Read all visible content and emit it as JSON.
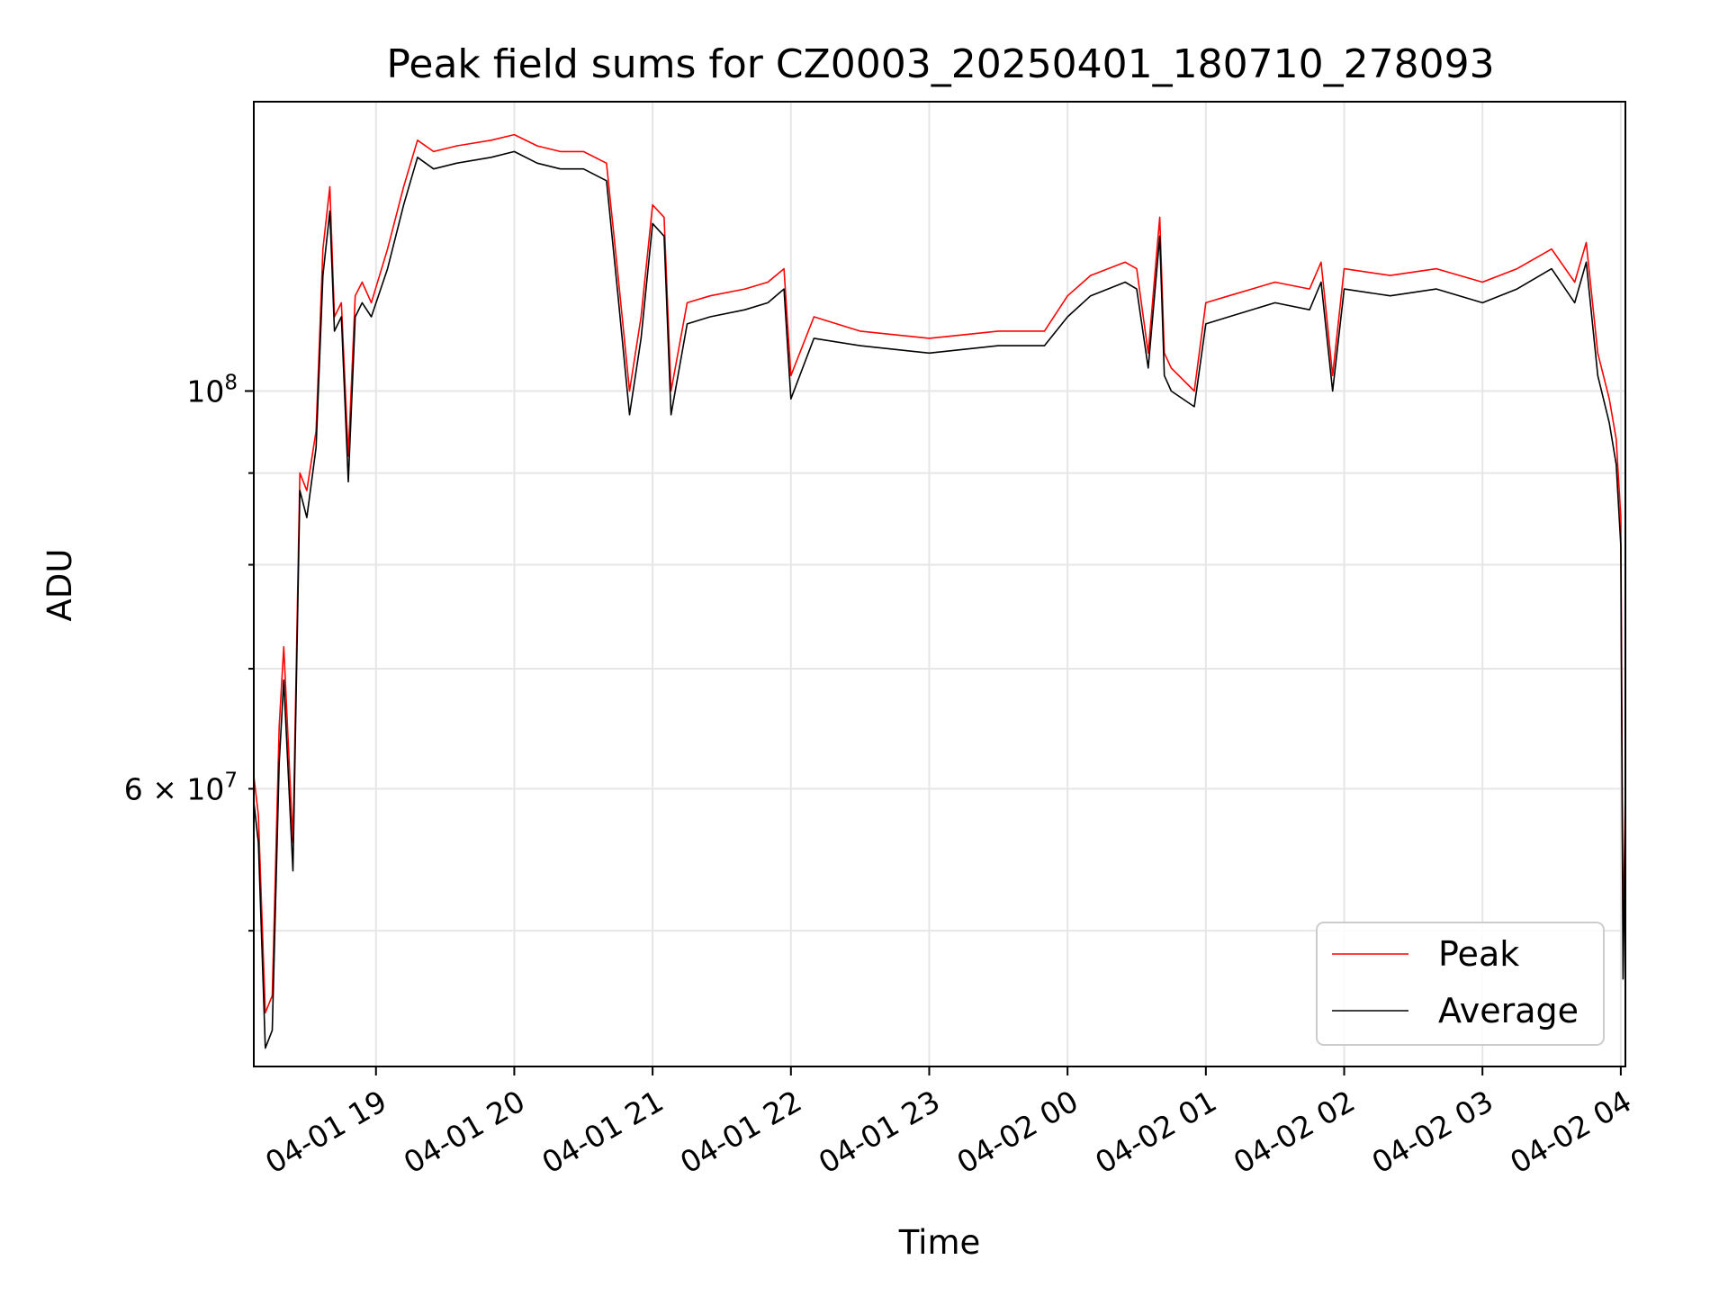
{
  "chart_data": {
    "type": "line",
    "title": "Peak field sums for CZ0003_20250401_180710_278093",
    "xlabel": "Time",
    "ylabel": "ADU",
    "yscale": "log",
    "ylim": [
      42000000,
      145000000
    ],
    "xlim": [
      "2025-04-01 18:07",
      "2025-04-02 04:02"
    ],
    "x_ticks": [
      "04-01 19",
      "04-01 20",
      "04-01 21",
      "04-01 22",
      "04-01 23",
      "04-02 00",
      "04-02 01",
      "04-02 02",
      "04-02 03",
      "04-02 04"
    ],
    "y_tick_labels": [
      {
        "value": 100000000,
        "base": "10",
        "exp": "8"
      },
      {
        "value": 60000000,
        "mant": "6 × 10",
        "exp": "7"
      }
    ],
    "grid": true,
    "legend": {
      "position": "lower-right",
      "entries": [
        "Peak",
        "Average"
      ]
    },
    "colors": {
      "Peak": "#ff0000",
      "Average": "#000000"
    },
    "series": [
      {
        "name": "Peak",
        "color": "#ff0000",
        "x": [
          "2025-04-01 18:07",
          "2025-04-01 18:09",
          "2025-04-01 18:12",
          "2025-04-01 18:15",
          "2025-04-01 18:18",
          "2025-04-01 18:20",
          "2025-04-01 18:24",
          "2025-04-01 18:27",
          "2025-04-01 18:30",
          "2025-04-01 18:34",
          "2025-04-01 18:37",
          "2025-04-01 18:40",
          "2025-04-01 18:42",
          "2025-04-01 18:45",
          "2025-04-01 18:48",
          "2025-04-01 18:51",
          "2025-04-01 18:54",
          "2025-04-01 18:58",
          "2025-04-01 19:05",
          "2025-04-01 19:12",
          "2025-04-01 19:18",
          "2025-04-01 19:25",
          "2025-04-01 19:35",
          "2025-04-01 19:50",
          "2025-04-01 20:00",
          "2025-04-01 20:10",
          "2025-04-01 20:20",
          "2025-04-01 20:30",
          "2025-04-01 20:40",
          "2025-04-01 20:45",
          "2025-04-01 20:50",
          "2025-04-01 20:55",
          "2025-04-01 21:00",
          "2025-04-01 21:05",
          "2025-04-01 21:08",
          "2025-04-01 21:15",
          "2025-04-01 21:25",
          "2025-04-01 21:40",
          "2025-04-01 21:50",
          "2025-04-01 21:57",
          "2025-04-01 22:00",
          "2025-04-01 22:10",
          "2025-04-01 22:30",
          "2025-04-01 23:00",
          "2025-04-01 23:30",
          "2025-04-01 23:50",
          "2025-04-02 00:00",
          "2025-04-02 00:10",
          "2025-04-02 00:25",
          "2025-04-02 00:30",
          "2025-04-02 00:35",
          "2025-04-02 00:40",
          "2025-04-02 00:42",
          "2025-04-02 00:45",
          "2025-04-02 00:55",
          "2025-04-02 01:00",
          "2025-04-02 01:10",
          "2025-04-02 01:30",
          "2025-04-02 01:45",
          "2025-04-02 01:50",
          "2025-04-02 01:55",
          "2025-04-02 02:00",
          "2025-04-02 02:20",
          "2025-04-02 02:40",
          "2025-04-02 03:00",
          "2025-04-02 03:15",
          "2025-04-02 03:30",
          "2025-04-02 03:40",
          "2025-04-02 03:45",
          "2025-04-02 03:50",
          "2025-04-02 03:55",
          "2025-04-02 03:58",
          "2025-04-02 04:00",
          "2025-04-02 04:01",
          "2025-04-02 04:02"
        ],
        "values": [
          61000000,
          58000000,
          45000000,
          46000000,
          65000000,
          72000000,
          56000000,
          90000000,
          88000000,
          95000000,
          120000000,
          130000000,
          110000000,
          112000000,
          92000000,
          113000000,
          115000000,
          112000000,
          120000000,
          130000000,
          138000000,
          136000000,
          137000000,
          138000000,
          139000000,
          137000000,
          136000000,
          136000000,
          134000000,
          116000000,
          100000000,
          110000000,
          127000000,
          125000000,
          100000000,
          112000000,
          113000000,
          114000000,
          115000000,
          117000000,
          102000000,
          110000000,
          108000000,
          107000000,
          108000000,
          108000000,
          113000000,
          116000000,
          118000000,
          117000000,
          105000000,
          125000000,
          105000000,
          103000000,
          100000000,
          112000000,
          113000000,
          115000000,
          114000000,
          118000000,
          102000000,
          117000000,
          116000000,
          117000000,
          115000000,
          117000000,
          120000000,
          115000000,
          121000000,
          105000000,
          99000000,
          94000000,
          85000000,
          49000000,
          60000000
        ]
      },
      {
        "name": "Average",
        "color": "#000000",
        "x": [
          "2025-04-01 18:07",
          "2025-04-01 18:09",
          "2025-04-01 18:12",
          "2025-04-01 18:15",
          "2025-04-01 18:18",
          "2025-04-01 18:20",
          "2025-04-01 18:24",
          "2025-04-01 18:27",
          "2025-04-01 18:30",
          "2025-04-01 18:34",
          "2025-04-01 18:37",
          "2025-04-01 18:40",
          "2025-04-01 18:42",
          "2025-04-01 18:45",
          "2025-04-01 18:48",
          "2025-04-01 18:51",
          "2025-04-01 18:54",
          "2025-04-01 18:58",
          "2025-04-01 19:05",
          "2025-04-01 19:12",
          "2025-04-01 19:18",
          "2025-04-01 19:25",
          "2025-04-01 19:35",
          "2025-04-01 19:50",
          "2025-04-01 20:00",
          "2025-04-01 20:10",
          "2025-04-01 20:20",
          "2025-04-01 20:30",
          "2025-04-01 20:40",
          "2025-04-01 20:45",
          "2025-04-01 20:50",
          "2025-04-01 20:55",
          "2025-04-01 21:00",
          "2025-04-01 21:05",
          "2025-04-01 21:08",
          "2025-04-01 21:15",
          "2025-04-01 21:25",
          "2025-04-01 21:40",
          "2025-04-01 21:50",
          "2025-04-01 21:57",
          "2025-04-01 22:00",
          "2025-04-01 22:10",
          "2025-04-01 22:30",
          "2025-04-01 23:00",
          "2025-04-01 23:30",
          "2025-04-01 23:50",
          "2025-04-02 00:00",
          "2025-04-02 00:10",
          "2025-04-02 00:25",
          "2025-04-02 00:30",
          "2025-04-02 00:35",
          "2025-04-02 00:40",
          "2025-04-02 00:42",
          "2025-04-02 00:45",
          "2025-04-02 00:55",
          "2025-04-02 01:00",
          "2025-04-02 01:10",
          "2025-04-02 01:30",
          "2025-04-02 01:45",
          "2025-04-02 01:50",
          "2025-04-02 01:55",
          "2025-04-02 02:00",
          "2025-04-02 02:20",
          "2025-04-02 02:40",
          "2025-04-02 03:00",
          "2025-04-02 03:15",
          "2025-04-02 03:30",
          "2025-04-02 03:40",
          "2025-04-02 03:45",
          "2025-04-02 03:50",
          "2025-04-02 03:55",
          "2025-04-02 03:58",
          "2025-04-02 04:00",
          "2025-04-02 04:01",
          "2025-04-02 04:02"
        ],
        "values": [
          59000000,
          56000000,
          43000000,
          44000000,
          62000000,
          69000000,
          54000000,
          88000000,
          85000000,
          93000000,
          116000000,
          126000000,
          108000000,
          110000000,
          89000000,
          110000000,
          112000000,
          110000000,
          117000000,
          127000000,
          135000000,
          133000000,
          134000000,
          135000000,
          136000000,
          134000000,
          133000000,
          133000000,
          131000000,
          113000000,
          97000000,
          107000000,
          124000000,
          122000000,
          97000000,
          109000000,
          110000000,
          111000000,
          112000000,
          114000000,
          99000000,
          107000000,
          106000000,
          105000000,
          106000000,
          106000000,
          110000000,
          113000000,
          115000000,
          114000000,
          103000000,
          122000000,
          102000000,
          100000000,
          98000000,
          109000000,
          110000000,
          112000000,
          111000000,
          115000000,
          100000000,
          114000000,
          113000000,
          114000000,
          112000000,
          114000000,
          117000000,
          112000000,
          118000000,
          102000000,
          96000000,
          91000000,
          82000000,
          47000000,
          58000000
        ]
      }
    ]
  }
}
